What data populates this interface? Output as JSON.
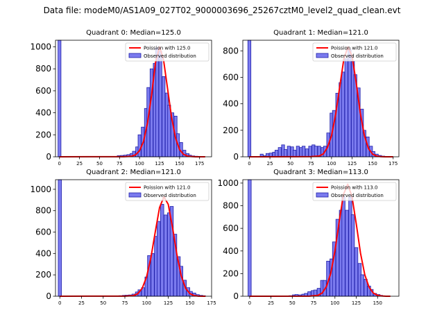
{
  "figure_title": "Data file: modeM0/AS1A09_027T02_9000003696_25267cztM0_level2_quad_clean.evt",
  "colors": {
    "bar_fill": "#7b7bef",
    "bar_edge": "#1f1fa8",
    "poisson_line": "#ff0000"
  },
  "chart_data": [
    {
      "type": "bar",
      "title": "Quadrant 0: Median=125.0",
      "legend": {
        "poisson": "Poission with 125.0",
        "observed": "Observed distribution",
        "position": "top-right"
      },
      "xlim": [
        -5,
        190
      ],
      "ylim": [
        0,
        1060
      ],
      "xticks": [
        0,
        25,
        50,
        75,
        100,
        125,
        150,
        175
      ],
      "yticks": [
        0,
        200,
        400,
        600,
        800,
        1000
      ],
      "bin_width": 3.7,
      "bins": [
        {
          "x": 0,
          "y": 1060
        },
        {
          "x": 74,
          "y": 10
        },
        {
          "x": 78,
          "y": 12
        },
        {
          "x": 82,
          "y": 15
        },
        {
          "x": 86,
          "y": 20
        },
        {
          "x": 90,
          "y": 30
        },
        {
          "x": 93,
          "y": 50
        },
        {
          "x": 97,
          "y": 90
        },
        {
          "x": 100,
          "y": 200
        },
        {
          "x": 104,
          "y": 270
        },
        {
          "x": 108,
          "y": 440
        },
        {
          "x": 111,
          "y": 630
        },
        {
          "x": 115,
          "y": 800
        },
        {
          "x": 119,
          "y": 850
        },
        {
          "x": 122,
          "y": 990
        },
        {
          "x": 126,
          "y": 960
        },
        {
          "x": 130,
          "y": 730
        },
        {
          "x": 134,
          "y": 580
        },
        {
          "x": 137,
          "y": 470
        },
        {
          "x": 141,
          "y": 400
        },
        {
          "x": 145,
          "y": 370
        },
        {
          "x": 148,
          "y": 210
        },
        {
          "x": 152,
          "y": 130
        },
        {
          "x": 156,
          "y": 60
        },
        {
          "x": 160,
          "y": 30
        },
        {
          "x": 163,
          "y": 15
        },
        {
          "x": 167,
          "y": 8
        },
        {
          "x": 171,
          "y": 5
        },
        {
          "x": 175,
          "y": 3
        }
      ],
      "poisson_x": [
        0,
        80,
        90,
        95,
        100,
        105,
        110,
        115,
        120,
        125,
        130,
        135,
        140,
        145,
        150,
        155,
        160,
        165,
        170,
        182
      ],
      "poisson_y": [
        0,
        1,
        5,
        18,
        55,
        140,
        310,
        560,
        860,
        1000,
        880,
        620,
        360,
        170,
        65,
        22,
        6,
        2,
        0,
        0
      ]
    },
    {
      "type": "bar",
      "title": "Quadrant 1: Median=121.0",
      "legend": {
        "poisson": "Poission with 121.0",
        "observed": "Observed distribution",
        "position": "top-right"
      },
      "xlim": [
        -8,
        182
      ],
      "ylim": [
        0,
        880
      ],
      "xticks": [
        0,
        25,
        50,
        75,
        100,
        125,
        150,
        175
      ],
      "yticks": [
        0,
        200,
        400,
        600,
        800
      ],
      "bin_width": 3.7,
      "bins": [
        {
          "x": 0,
          "y": 880
        },
        {
          "x": 15,
          "y": 20
        },
        {
          "x": 19,
          "y": 8
        },
        {
          "x": 22,
          "y": 25
        },
        {
          "x": 26,
          "y": 28
        },
        {
          "x": 30,
          "y": 35
        },
        {
          "x": 33,
          "y": 50
        },
        {
          "x": 37,
          "y": 70
        },
        {
          "x": 41,
          "y": 90
        },
        {
          "x": 44,
          "y": 55
        },
        {
          "x": 48,
          "y": 80
        },
        {
          "x": 52,
          "y": 75
        },
        {
          "x": 55,
          "y": 50
        },
        {
          "x": 59,
          "y": 80
        },
        {
          "x": 63,
          "y": 70
        },
        {
          "x": 66,
          "y": 80
        },
        {
          "x": 70,
          "y": 60
        },
        {
          "x": 74,
          "y": 80
        },
        {
          "x": 78,
          "y": 90
        },
        {
          "x": 81,
          "y": 80
        },
        {
          "x": 85,
          "y": 80
        },
        {
          "x": 89,
          "y": 70
        },
        {
          "x": 92,
          "y": 80
        },
        {
          "x": 96,
          "y": 180
        },
        {
          "x": 100,
          "y": 330
        },
        {
          "x": 103,
          "y": 350
        },
        {
          "x": 107,
          "y": 480
        },
        {
          "x": 111,
          "y": 560
        },
        {
          "x": 114,
          "y": 640
        },
        {
          "x": 118,
          "y": 740
        },
        {
          "x": 122,
          "y": 810
        },
        {
          "x": 126,
          "y": 720
        },
        {
          "x": 129,
          "y": 620
        },
        {
          "x": 133,
          "y": 520
        },
        {
          "x": 137,
          "y": 360
        },
        {
          "x": 140,
          "y": 200
        },
        {
          "x": 144,
          "y": 150
        },
        {
          "x": 148,
          "y": 80
        },
        {
          "x": 151,
          "y": 40
        },
        {
          "x": 155,
          "y": 20
        },
        {
          "x": 159,
          "y": 10
        },
        {
          "x": 163,
          "y": 5
        },
        {
          "x": 167,
          "y": 3
        }
      ],
      "poisson_x": [
        0,
        75,
        85,
        90,
        95,
        100,
        105,
        110,
        115,
        120,
        125,
        130,
        135,
        140,
        145,
        150,
        155,
        160,
        165,
        175
      ],
      "poisson_y": [
        0,
        1,
        6,
        22,
        70,
        160,
        320,
        530,
        740,
        830,
        760,
        560,
        330,
        160,
        62,
        20,
        5,
        1,
        0,
        0
      ]
    },
    {
      "type": "bar",
      "title": "Quadrant 2: Median=121.0",
      "legend": {
        "poisson": "Poission with 121.0",
        "observed": "Observed distribution",
        "position": "top-right"
      },
      "xlim": [
        -5,
        175
      ],
      "ylim": [
        0,
        1090
      ],
      "xticks": [
        0,
        25,
        50,
        75,
        100,
        125,
        150,
        175
      ],
      "yticks": [
        0,
        200,
        400,
        600,
        800,
        1000
      ],
      "bin_width": 3.7,
      "bins": [
        {
          "x": 0,
          "y": 1090
        },
        {
          "x": 70,
          "y": 5
        },
        {
          "x": 74,
          "y": 8
        },
        {
          "x": 77,
          "y": 10
        },
        {
          "x": 81,
          "y": 12
        },
        {
          "x": 85,
          "y": 20
        },
        {
          "x": 89,
          "y": 40
        },
        {
          "x": 92,
          "y": 60
        },
        {
          "x": 96,
          "y": 80
        },
        {
          "x": 100,
          "y": 180
        },
        {
          "x": 103,
          "y": 380
        },
        {
          "x": 107,
          "y": 400
        },
        {
          "x": 111,
          "y": 560
        },
        {
          "x": 114,
          "y": 700
        },
        {
          "x": 118,
          "y": 860
        },
        {
          "x": 122,
          "y": 760
        },
        {
          "x": 126,
          "y": 780
        },
        {
          "x": 129,
          "y": 840
        },
        {
          "x": 133,
          "y": 580
        },
        {
          "x": 137,
          "y": 370
        },
        {
          "x": 140,
          "y": 280
        },
        {
          "x": 144,
          "y": 150
        },
        {
          "x": 148,
          "y": 80
        },
        {
          "x": 151,
          "y": 45
        },
        {
          "x": 155,
          "y": 30
        },
        {
          "x": 159,
          "y": 15
        },
        {
          "x": 163,
          "y": 8
        },
        {
          "x": 166,
          "y": 5
        }
      ],
      "poisson_x": [
        0,
        75,
        85,
        90,
        95,
        100,
        105,
        110,
        115,
        120,
        125,
        130,
        135,
        140,
        145,
        150,
        155,
        160,
        165,
        168
      ],
      "poisson_y": [
        0,
        1,
        6,
        24,
        75,
        180,
        360,
        600,
        830,
        930,
        860,
        640,
        390,
        190,
        75,
        24,
        6,
        1,
        0,
        0
      ]
    },
    {
      "type": "bar",
      "title": "Quadrant 3: Median=113.0",
      "legend": {
        "poisson": "Poission with 113.0",
        "observed": "Observed distribution",
        "position": "top-right"
      },
      "xlim": [
        -8,
        175
      ],
      "ylim": [
        0,
        1030
      ],
      "xticks": [
        0,
        25,
        50,
        75,
        100,
        125,
        150
      ],
      "yticks": [
        0,
        200,
        400,
        600,
        800,
        1000
      ],
      "bin_width": 3.7,
      "bins": [
        {
          "x": 0,
          "y": 1030
        },
        {
          "x": 41,
          "y": 3
        },
        {
          "x": 48,
          "y": 5
        },
        {
          "x": 52,
          "y": 12
        },
        {
          "x": 55,
          "y": 15
        },
        {
          "x": 59,
          "y": 12
        },
        {
          "x": 63,
          "y": 18
        },
        {
          "x": 66,
          "y": 25
        },
        {
          "x": 70,
          "y": 40
        },
        {
          "x": 74,
          "y": 50
        },
        {
          "x": 77,
          "y": 55
        },
        {
          "x": 81,
          "y": 70
        },
        {
          "x": 85,
          "y": 140
        },
        {
          "x": 88,
          "y": 140
        },
        {
          "x": 92,
          "y": 310
        },
        {
          "x": 96,
          "y": 330
        },
        {
          "x": 99,
          "y": 480
        },
        {
          "x": 103,
          "y": 680
        },
        {
          "x": 107,
          "y": 760
        },
        {
          "x": 110,
          "y": 880
        },
        {
          "x": 114,
          "y": 760
        },
        {
          "x": 118,
          "y": 880
        },
        {
          "x": 121,
          "y": 720
        },
        {
          "x": 125,
          "y": 430
        },
        {
          "x": 129,
          "y": 290
        },
        {
          "x": 132,
          "y": 190
        },
        {
          "x": 136,
          "y": 150
        },
        {
          "x": 140,
          "y": 90
        },
        {
          "x": 143,
          "y": 60
        },
        {
          "x": 147,
          "y": 25
        },
        {
          "x": 151,
          "y": 15
        },
        {
          "x": 154,
          "y": 8
        }
      ],
      "poisson_x": [
        0,
        70,
        80,
        85,
        90,
        95,
        100,
        105,
        110,
        115,
        120,
        125,
        130,
        135,
        140,
        145,
        150,
        155,
        160,
        165
      ],
      "poisson_y": [
        0,
        1,
        8,
        28,
        85,
        200,
        400,
        660,
        900,
        990,
        880,
        640,
        380,
        190,
        80,
        28,
        8,
        2,
        0,
        0
      ]
    }
  ]
}
